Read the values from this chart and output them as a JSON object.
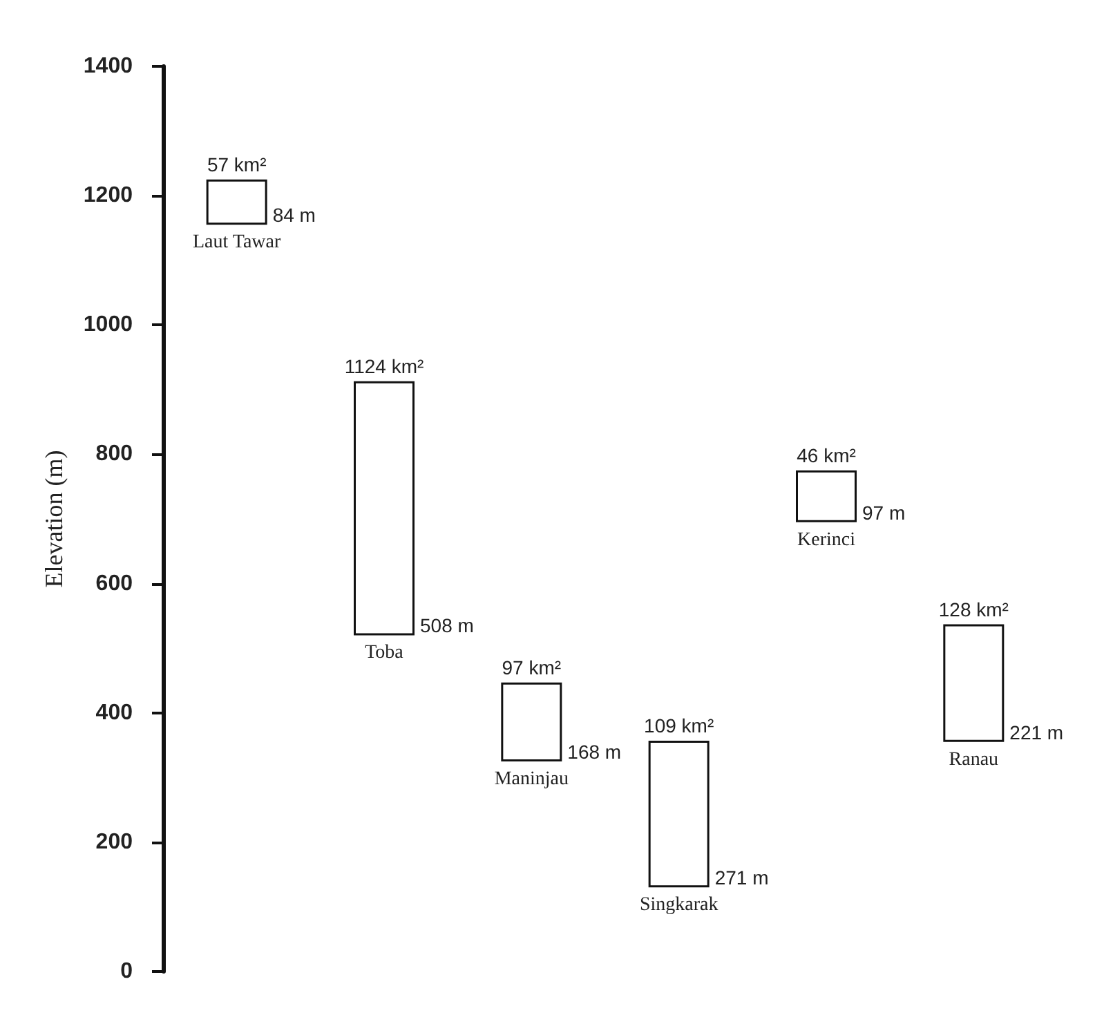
{
  "chart_data": {
    "type": "bar",
    "ylabel": "Elevation (m)",
    "categories": [
      "Laut Tawar",
      "Toba",
      "Maninjau",
      "Singkarak",
      "Kerinci",
      "Ranau"
    ],
    "base": [
      1155,
      520,
      325,
      130,
      695,
      355
    ],
    "values": [
      70,
      393,
      122,
      227,
      80,
      182
    ],
    "color": "#ffffff",
    "ylim": [
      0,
      1400
    ],
    "yticks": [
      0,
      200,
      400,
      600,
      800,
      1000,
      1200,
      1400
    ],
    "grid": false,
    "tick_labels": "y",
    "annotations": [
      {
        "text": "57 km²",
        "x": "Laut Tawar",
        "y": 1225
      },
      {
        "text": "84 m",
        "x": "Laut Tawar",
        "y": 1155
      },
      {
        "text": "1124 km²",
        "x": "Toba",
        "y": 913
      },
      {
        "text": "508 m",
        "x": "Toba",
        "y": 520
      },
      {
        "text": "97 km²",
        "x": "Maninjau",
        "y": 447
      },
      {
        "text": "168 m",
        "x": "Maninjau",
        "y": 325
      },
      {
        "text": "109 km²",
        "x": "Singkarak",
        "y": 357
      },
      {
        "text": "271 m",
        "x": "Singkarak",
        "y": 130
      },
      {
        "text": "46 km²",
        "x": "Kerinci",
        "y": 775
      },
      {
        "text": "97 m",
        "x": "Kerinci",
        "y": 695
      },
      {
        "text": "128 km²",
        "x": "Ranau",
        "y": 537
      },
      {
        "text": "221 m",
        "x": "Ranau",
        "y": 355
      }
    ]
  }
}
